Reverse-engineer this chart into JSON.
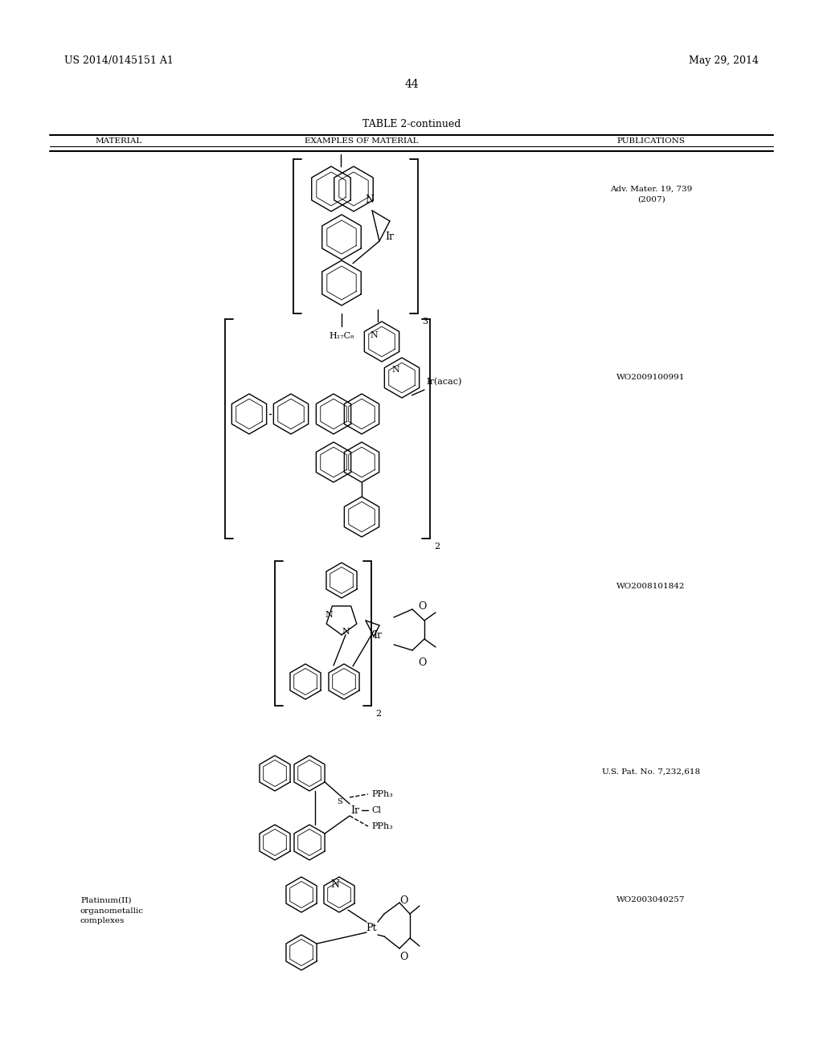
{
  "background_color": "#ffffff",
  "page_number": "44",
  "patent_number": "US 2014/0145151 A1",
  "patent_date": "May 29, 2014",
  "table_title": "TABLE 2-continued",
  "col_headers": [
    "MATERIAL",
    "EXAMPLES OF MATERIAL",
    "PUBLICATIONS"
  ],
  "pub1": "Adv. Mater. 19, 739\n(2007)",
  "pub2": "WO2009100991",
  "pub3": "WO2008101842",
  "pub4": "U.S. Pat. No. 7,232,618",
  "pub5": "WO2003040257",
  "mat5": "Platinum(II)\norganometallic\ncomplexes"
}
